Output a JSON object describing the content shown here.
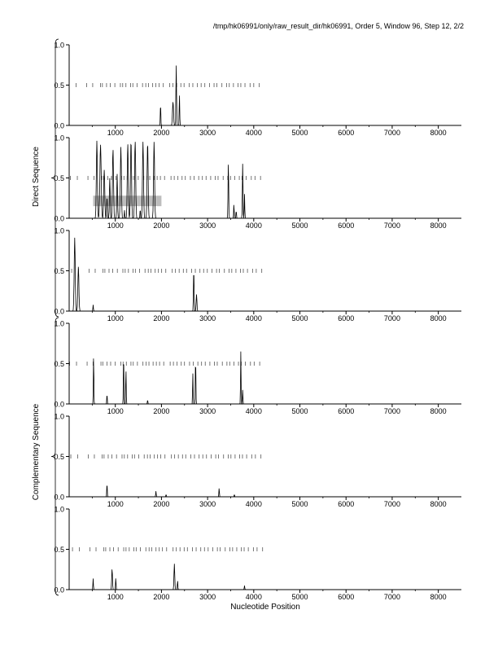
{
  "header": {
    "title": "/tmp/hk06991/only/raw_result_dir/hk06991, Order 5, Window 96, Step 12, 2/2"
  },
  "labels": {
    "xlabel": "Nucleotide Position",
    "direct": "Direct Sequence",
    "complementary": "Complementary Sequence"
  },
  "colors": {
    "line": "#000000",
    "axis": "#000000",
    "marker": "#555555",
    "region": "#bdbdbd"
  },
  "chart_data": {
    "type": "line",
    "xlim": [
      0,
      8500
    ],
    "ylim": [
      0,
      1
    ],
    "xticks": [
      1000,
      2000,
      3000,
      4000,
      5000,
      6000,
      7000,
      8000
    ],
    "yticks": [
      "0.0",
      "0.5",
      "1.0"
    ],
    "marker_extent": [
      0,
      4200
    ],
    "marker_seq": [
      0,
      150,
      380,
      510,
      680,
      720,
      810,
      890,
      990,
      1110,
      1160,
      1230,
      1330,
      1380,
      1470,
      1590,
      1660,
      1720,
      1810,
      1880,
      1950,
      2040,
      2180,
      2250,
      2330,
      2420,
      2490,
      2600,
      2680,
      2780,
      2860,
      2940,
      3040,
      3140,
      3200,
      3310,
      3410,
      3470,
      3560,
      3660,
      3720,
      3810,
      3920,
      4000,
      4120
    ],
    "panels": [
      {
        "group": "direct",
        "marker_offset": 0,
        "peaks": [
          [
            1980,
            0.28,
            20
          ],
          [
            2250,
            0.3,
            40
          ],
          [
            2320,
            0.76,
            25
          ],
          [
            2390,
            0.4,
            20
          ]
        ],
        "region": null
      },
      {
        "group": "direct",
        "marker_offset": 3,
        "peaks": [
          [
            600,
            0.97,
            40
          ],
          [
            680,
            0.96,
            50
          ],
          [
            760,
            0.6,
            40
          ],
          [
            820,
            0.28,
            30
          ],
          [
            880,
            0.5,
            30
          ],
          [
            950,
            0.9,
            40
          ],
          [
            1040,
            0.55,
            30
          ],
          [
            1120,
            0.93,
            40
          ],
          [
            1200,
            0.1,
            20
          ],
          [
            1270,
            0.96,
            40
          ],
          [
            1340,
            0.98,
            40
          ],
          [
            1430,
            0.97,
            40
          ],
          [
            1540,
            0.12,
            20
          ],
          [
            1600,
            0.95,
            40
          ],
          [
            1700,
            0.96,
            40
          ],
          [
            1840,
            0.96,
            40
          ],
          [
            3450,
            0.73,
            25
          ],
          [
            3570,
            0.18,
            20
          ],
          [
            3620,
            0.1,
            20
          ],
          [
            3760,
            0.7,
            25
          ],
          [
            3800,
            0.3,
            20
          ]
        ],
        "region": [
          520,
          2000,
          0.15,
          0.28
        ]
      },
      {
        "group": "direct",
        "marker_offset": 6,
        "peaks": [
          [
            120,
            0.95,
            40
          ],
          [
            200,
            0.55,
            40
          ],
          [
            520,
            0.08,
            20
          ],
          [
            2700,
            0.52,
            25
          ],
          [
            2760,
            0.22,
            30
          ]
        ],
        "region": null
      },
      {
        "group": "complementary",
        "marker_offset": 1,
        "peaks": [
          [
            530,
            0.62,
            20
          ],
          [
            820,
            0.13,
            20
          ],
          [
            1180,
            0.63,
            20
          ],
          [
            1230,
            0.45,
            20
          ],
          [
            1700,
            0.05,
            20
          ],
          [
            2680,
            0.38,
            20
          ],
          [
            2740,
            0.6,
            20
          ],
          [
            3720,
            0.68,
            20
          ],
          [
            3760,
            0.18,
            20
          ]
        ],
        "region": null
      },
      {
        "group": "complementary",
        "marker_offset": 4,
        "peaks": [
          [
            820,
            0.18,
            20
          ],
          [
            1880,
            0.07,
            20
          ],
          [
            2100,
            0.03,
            20
          ],
          [
            3250,
            0.11,
            20
          ],
          [
            3580,
            0.03,
            20
          ]
        ],
        "region": null
      },
      {
        "group": "complementary",
        "marker_offset": 8,
        "peaks": [
          [
            520,
            0.14,
            20
          ],
          [
            930,
            0.26,
            30
          ],
          [
            1010,
            0.15,
            20
          ],
          [
            2280,
            0.32,
            30
          ],
          [
            2350,
            0.12,
            20
          ],
          [
            3800,
            0.05,
            20
          ]
        ],
        "region": null
      }
    ]
  }
}
